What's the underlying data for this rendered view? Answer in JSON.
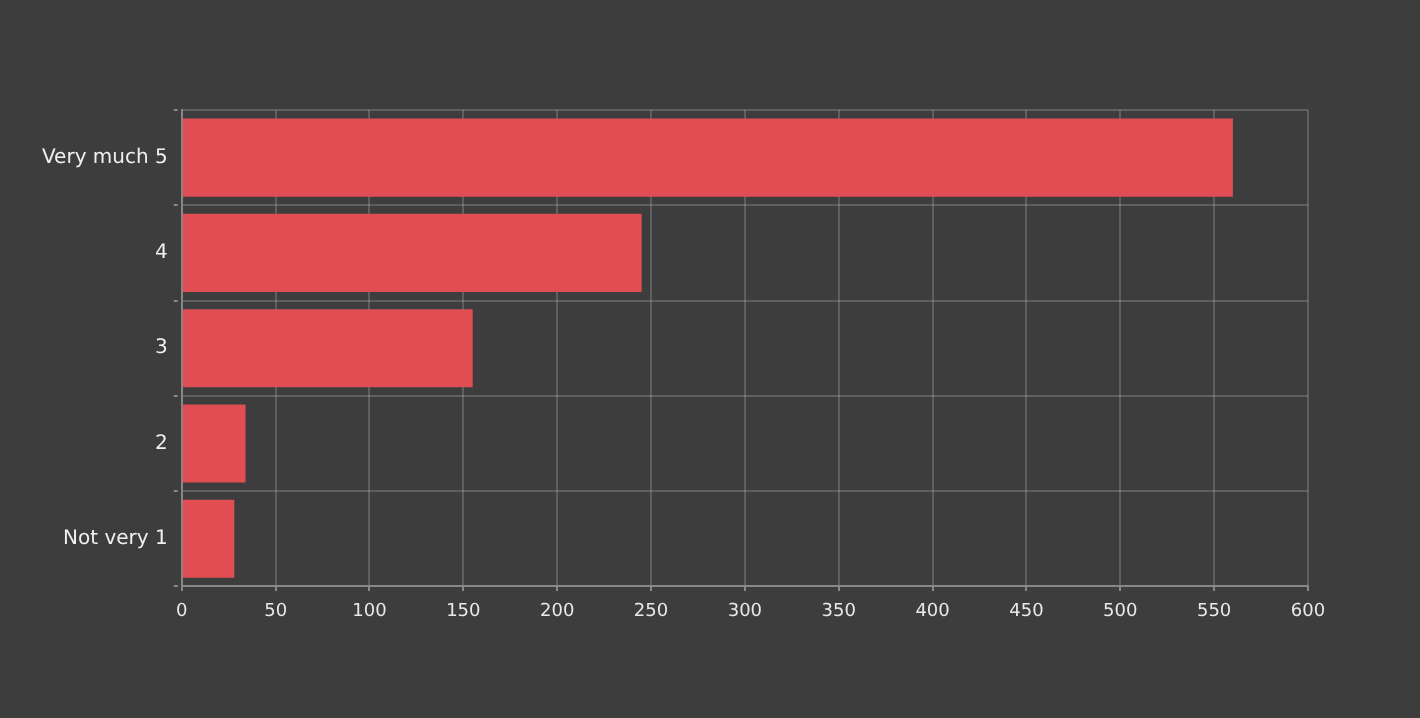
{
  "chart_data": {
    "type": "bar",
    "orientation": "horizontal",
    "categories": [
      "Very much 5",
      "4",
      "3",
      "2",
      "Not very 1"
    ],
    "values": [
      560,
      245,
      155,
      34,
      28
    ],
    "color": "#e04e54",
    "xlim": [
      0,
      600
    ],
    "xticks": [
      0,
      50,
      100,
      150,
      200,
      250,
      300,
      350,
      400,
      450,
      500,
      550,
      600
    ],
    "grid": true,
    "legend": false
  }
}
